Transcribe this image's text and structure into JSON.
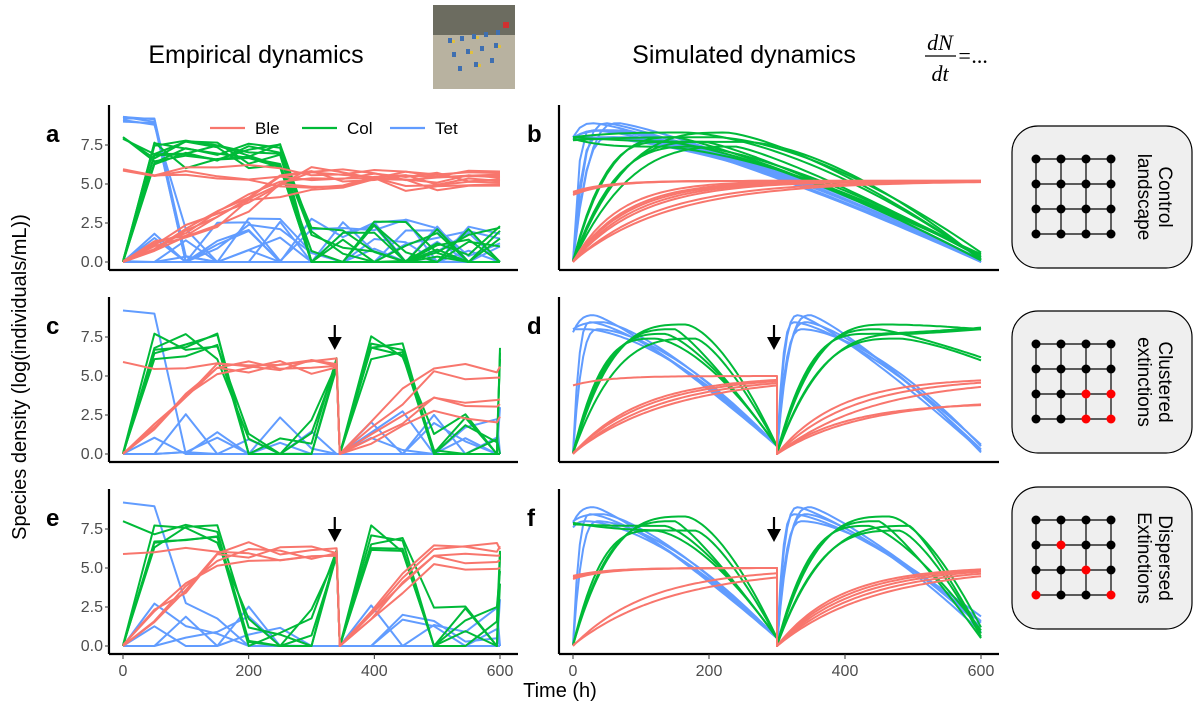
{
  "header": {
    "left_title": "Empirical dynamics",
    "right_title": "Simulated dynamics",
    "equation_num": "dN",
    "equation_den": "dt",
    "equation_rest": "=..."
  },
  "axes": {
    "ylabel": "Species density (log(individuals/mL))",
    "xlabel": "Time (h)",
    "y_ticks": [
      "0.0",
      "2.5",
      "5.0",
      "7.5"
    ],
    "x_ticks": [
      "0",
      "200",
      "400",
      "600"
    ]
  },
  "legend": {
    "items": [
      {
        "label": "Ble",
        "color": "#F8766D"
      },
      {
        "label": "Col",
        "color": "#00BA38"
      },
      {
        "label": "Tet",
        "color": "#619CFF"
      }
    ]
  },
  "scenarios": [
    {
      "line1": "Control",
      "line2": "landscape",
      "red_nodes": []
    },
    {
      "line1": "Clustered",
      "line2": "extinctions",
      "red_nodes": [
        [
          2,
          2
        ],
        [
          3,
          2
        ],
        [
          2,
          3
        ],
        [
          3,
          3
        ]
      ]
    },
    {
      "line1": "Dispersed",
      "line2": "Extinctions",
      "red_nodes": [
        [
          1,
          1
        ],
        [
          2,
          2
        ],
        [
          0,
          3
        ],
        [
          3,
          3
        ]
      ]
    }
  ],
  "chart_data": [
    {
      "panel": "a",
      "type": "line",
      "mode": "empirical",
      "perturbation_time": null,
      "xlim": [
        0,
        600
      ],
      "ylim": [
        0,
        9.5
      ],
      "series": [
        {
          "name": "Ble",
          "color": "#F8766D",
          "initial": [
            5.9,
            0.05,
            0.0,
            0.0,
            0.0,
            0.0,
            0.05,
            0.0,
            5.95,
            5.85
          ],
          "final": [
            5.2,
            5.6,
            5.4,
            5.0,
            5.5,
            5.7,
            5.3,
            4.9,
            5.8,
            5.1
          ]
        },
        {
          "name": "Col",
          "color": "#00BA38",
          "initial": [
            8.0,
            7.9,
            0.05,
            0.0,
            0.0,
            0.05,
            8.0,
            0.0,
            0.0,
            0.0
          ],
          "final": [
            2.2,
            0.0,
            1.5,
            0.0,
            2.0,
            0.0,
            1.0,
            0.0,
            2.3,
            0.0
          ]
        },
        {
          "name": "Tet",
          "color": "#619CFF",
          "initial": [
            9.3,
            9.1,
            9.3,
            0.05,
            0.0,
            9.2,
            0.0,
            0.0,
            9.0,
            0.0
          ],
          "final": [
            0.0,
            1.5,
            0.0,
            1.0,
            0.0,
            0.0,
            1.8,
            0.0,
            0.0,
            1.2
          ]
        }
      ]
    },
    {
      "panel": "b",
      "type": "line",
      "mode": "simulated",
      "perturbation_time": null,
      "xlim": [
        0,
        600
      ],
      "ylim": [
        0,
        9.5
      ],
      "series": [
        {
          "name": "Ble",
          "color": "#F8766D",
          "initial": [
            4.3,
            0.05,
            0.0,
            4.5,
            0.0,
            0.0,
            0.05,
            0.0,
            4.4,
            0.0
          ],
          "final": [
            5.2,
            5.2,
            5.2,
            5.2,
            5.2,
            5.2,
            5.2,
            5.2,
            5.2,
            5.2
          ]
        },
        {
          "name": "Col",
          "color": "#00BA38",
          "initial": [
            7.9,
            0.05,
            0.0,
            8.0,
            0.0,
            0.05,
            7.8,
            0.0,
            0.0,
            8.0
          ],
          "final": [
            0.3,
            0.1,
            0.5,
            0.2,
            0.4,
            0.1,
            0.6,
            0.2,
            0.3,
            0.1
          ]
        },
        {
          "name": "Tet",
          "color": "#619CFF",
          "initial": [
            7.8,
            0.05,
            8.0,
            0.0,
            7.9,
            0.05,
            0.0,
            8.0,
            0.0,
            7.9
          ],
          "final": [
            0.1,
            0.0,
            0.2,
            0.0,
            0.1,
            0.0,
            0.1,
            0.0,
            0.2,
            0.0
          ]
        }
      ]
    },
    {
      "panel": "c",
      "type": "line",
      "mode": "empirical",
      "perturbation_time": 345,
      "xlim": [
        0,
        600
      ],
      "ylim": [
        0,
        9.5
      ],
      "series": [
        {
          "name": "Ble",
          "color": "#F8766D",
          "initial": [
            5.9,
            0.0,
            0.05,
            0.0,
            0.0
          ],
          "final": [
            5.6,
            3.5,
            2.4,
            4.9,
            3.2
          ]
        },
        {
          "name": "Col",
          "color": "#00BA38",
          "initial": [
            0.05,
            0.0,
            0.0,
            0.05,
            0.0
          ],
          "final": [
            6.8,
            6.1,
            6.5,
            0.0,
            0.0
          ]
        },
        {
          "name": "Tet",
          "color": "#619CFF",
          "initial": [
            9.2,
            0.0,
            0.0,
            0.0,
            0.0
          ],
          "final": [
            0.0,
            0.0,
            3.0,
            0.0,
            0.0
          ]
        }
      ]
    },
    {
      "panel": "d",
      "type": "line",
      "mode": "simulated",
      "perturbation_time": 300,
      "xlim": [
        0,
        600
      ],
      "ylim": [
        0,
        9.5
      ],
      "series": [
        {
          "name": "Ble",
          "color": "#F8766D",
          "initial": [
            4.4,
            0.05,
            0.0,
            0.05,
            0.0
          ],
          "final": [
            4.9,
            3.5,
            4.9,
            3.3,
            4.9
          ]
        },
        {
          "name": "Col",
          "color": "#00BA38",
          "initial": [
            0.05,
            0.0,
            0.05,
            0.0,
            0.05
          ],
          "final": [
            8.1,
            6.2,
            8.0,
            6.0,
            8.0
          ]
        },
        {
          "name": "Tet",
          "color": "#619CFF",
          "initial": [
            8.0,
            0.05,
            7.8,
            0.05,
            8.0
          ],
          "final": [
            0.6,
            0.2,
            0.5,
            0.1,
            0.3
          ]
        }
      ]
    },
    {
      "panel": "e",
      "type": "line",
      "mode": "empirical",
      "perturbation_time": 345,
      "xlim": [
        0,
        600
      ],
      "ylim": [
        0,
        9.5
      ],
      "series": [
        {
          "name": "Ble",
          "color": "#F8766D",
          "initial": [
            5.9,
            0.05,
            0.0,
            0.05,
            0.0
          ],
          "final": [
            6.2,
            5.5,
            6.4,
            5.0,
            5.8
          ]
        },
        {
          "name": "Col",
          "color": "#00BA38",
          "initial": [
            8.0,
            0.05,
            0.0,
            0.0,
            0.05
          ],
          "final": [
            4.0,
            6.0,
            5.8,
            4.8,
            6.1
          ]
        },
        {
          "name": "Tet",
          "color": "#619CFF",
          "initial": [
            9.2,
            0.0,
            0.0,
            0.0,
            0.0
          ],
          "final": [
            0.0,
            0.0,
            0.0,
            0.0,
            3.0
          ]
        }
      ]
    },
    {
      "panel": "f",
      "type": "line",
      "mode": "simulated",
      "perturbation_time": 300,
      "xlim": [
        0,
        600
      ],
      "ylim": [
        0,
        9.5
      ],
      "series": [
        {
          "name": "Ble",
          "color": "#F8766D",
          "initial": [
            4.4,
            0.05,
            4.3,
            0.0,
            4.5
          ],
          "final": [
            5.1,
            5.1,
            5.1,
            5.1,
            5.1
          ]
        },
        {
          "name": "Col",
          "color": "#00BA38",
          "initial": [
            0.05,
            7.8,
            0.05,
            0.0,
            7.9
          ],
          "final": [
            1.0,
            0.5,
            1.2,
            0.6,
            0.8
          ]
        },
        {
          "name": "Tet",
          "color": "#619CFF",
          "initial": [
            7.6,
            0.05,
            7.9,
            0.05,
            8.0
          ],
          "final": [
            1.6,
            1.9,
            1.2,
            0.9,
            1.5
          ]
        }
      ]
    }
  ]
}
